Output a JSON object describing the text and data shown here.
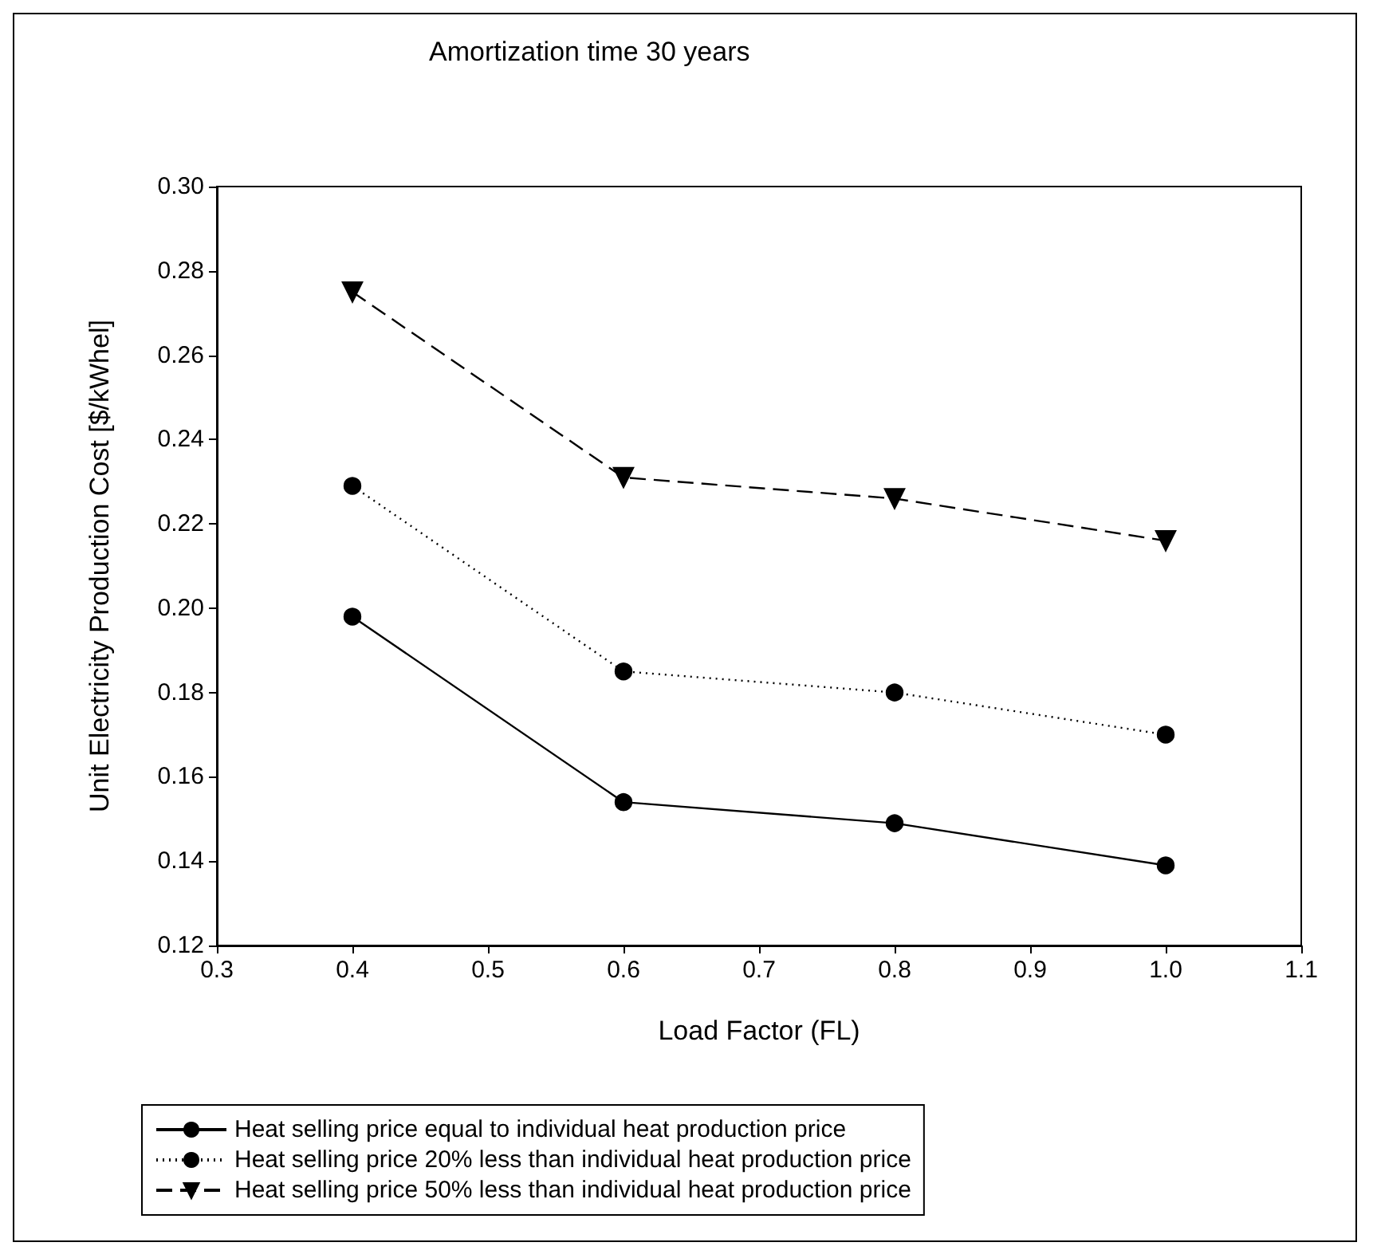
{
  "chart_data": {
    "type": "line",
    "title": "Amortization time 30 years",
    "xlabel": "Load Factor (FL)",
    "ylabel": "Unit Electricity Production Cost [$/kWhel]",
    "x": [
      0.4,
      0.6,
      0.8,
      1.0
    ],
    "series": [
      {
        "name": "Heat selling price equal to individual heat production price",
        "color": "#000000",
        "marker": "circle",
        "line_style": "solid",
        "values": [
          0.198,
          0.154,
          0.149,
          0.139
        ]
      },
      {
        "name": "Heat selling price 20% less than individual heat production price",
        "color": "#000000",
        "marker": "circle",
        "line_style": "dotted",
        "values": [
          0.229,
          0.185,
          0.18,
          0.17
        ]
      },
      {
        "name": "Heat selling price 50% less than individual heat production price",
        "color": "#000000",
        "marker": "triangle",
        "line_style": "dashed",
        "values": [
          0.275,
          0.231,
          0.226,
          0.216
        ]
      }
    ],
    "xlim": [
      0.3,
      1.1
    ],
    "xticks": [
      0.3,
      {
        "value": 0.4,
        "label": "0.4"
      },
      0.5,
      0.6,
      0.7,
      0.8,
      0.9,
      {
        "value": 1.0,
        "label": "1.0"
      },
      1.1
    ],
    "ylim": [
      0.12,
      0.3
    ],
    "yticks": [
      {
        "value": 0.12,
        "label": "0.12"
      },
      {
        "value": 0.14,
        "label": "0.14"
      },
      {
        "value": 0.16,
        "label": "0.16"
      },
      {
        "value": 0.18,
        "label": "0.18"
      },
      {
        "value": 0.2,
        "label": "0.20"
      },
      {
        "value": 0.22,
        "label": "0.22"
      },
      {
        "value": 0.24,
        "label": "0.24"
      },
      {
        "value": 0.26,
        "label": "0.26"
      },
      {
        "value": 0.28,
        "label": "0.28"
      },
      {
        "value": 0.3,
        "label": "0.30"
      }
    ],
    "grid": false,
    "legend": "bottom"
  }
}
